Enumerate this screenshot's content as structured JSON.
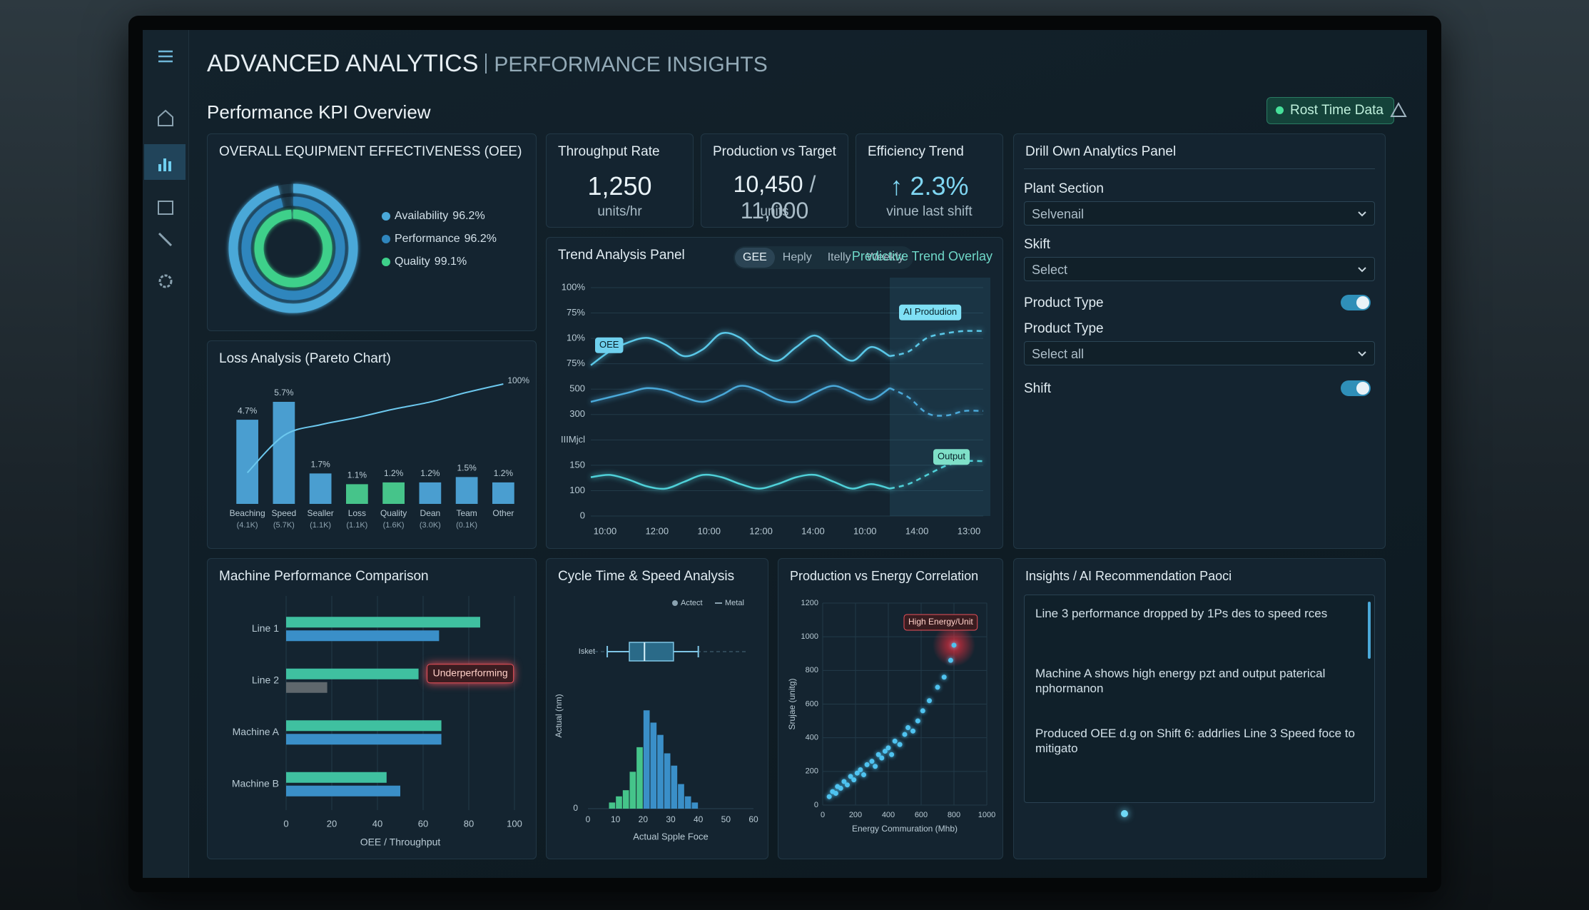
{
  "header": {
    "title": "ADVANCED ANALYTICS",
    "subtitle": "PERFORMANCE INSIGHTS",
    "section": "Performance KPI Overview",
    "status": "Rost Time Data"
  },
  "kpis": [
    {
      "title": "Throughput Rate",
      "value": "1,250",
      "unit": "units/hr"
    },
    {
      "title": "Production vs Target",
      "value": "10,450",
      "target": "/ 11,000",
      "unit": "units"
    },
    {
      "title": "Efficiency Trend",
      "value": "↑ 2.3%",
      "unit": "vinue last shift"
    }
  ],
  "drill_panel": {
    "title": "Drill Own Analytics Panel",
    "plant_section": {
      "label": "Plant Section",
      "value": "Selvenail"
    },
    "skift": {
      "label": "Skift",
      "value": "Select"
    },
    "product_type_toggle": {
      "label": "Product Type",
      "on": true
    },
    "product_type": {
      "label": "Product Type",
      "value": "Select all"
    },
    "shift_toggle": {
      "label": "Shift",
      "on": true
    }
  },
  "insights": {
    "title": "Insights / AI Recommendation Paoci",
    "items": [
      "Line 3 performance dropped by 1Ps des to speed rces",
      "Machine A shows high energy pzt and output paterical nphormanon",
      "Produced OEE d.g on Shift 6: addrlies Line 3 Speed foce to mitigato"
    ]
  },
  "chart_data": [
    {
      "type": "donut",
      "title": "OVERALL EQUIPMENT EFFECTIVENESS (OEE)",
      "categories": [
        "Availability",
        "Performance",
        "Quality"
      ],
      "values": [
        96.2,
        96.2,
        99.1
      ],
      "value_labels": [
        "96.2%",
        "96.2%",
        "99.1%"
      ],
      "colors": [
        "#4aa8d8",
        "#2f86bd",
        "#3ed08a"
      ]
    },
    {
      "type": "pareto",
      "title": "Loss Analysis (Pareto Chart)",
      "categories": [
        "Beaching",
        "Speed",
        "Sealler",
        "Loss",
        "Quality",
        "Dean",
        "Team",
        "Other"
      ],
      "category_notes": [
        "(4.1K)",
        "(5.7K)",
        "(1.1K)",
        "(1.1K)",
        "(1.6K)",
        "(3.0K)",
        "(0.1K)",
        null
      ],
      "values": [
        4.7,
        5.7,
        1.7,
        1.1,
        1.2,
        1.2,
        1.5,
        1.2
      ],
      "value_labels": [
        "4.7%",
        "5.7%",
        "1.7%",
        "1.1%",
        "1.2%",
        "1.2%",
        "1.5%",
        "1.2%"
      ],
      "colors": [
        "#4a9ed0",
        "#4a9ed0",
        "#4a9ed0",
        "#46c48a",
        "#46c48a",
        "#4a9ed0",
        "#4a9ed0",
        "#4a9ed0"
      ],
      "cumulative": {
        "values": [
          26,
          57,
          66,
          72,
          79,
          85,
          93,
          100
        ],
        "label": "100%",
        "color": "#6cc8ee"
      }
    },
    {
      "type": "line",
      "title": "Trend Analysis Panel",
      "tabs": [
        "GEE",
        "Heply",
        "Itelly",
        "Weekly"
      ],
      "active_tab": 0,
      "overlay_label": "Predictive Trend Overlay",
      "forecast_label": "AI Produdion",
      "y_labels": [
        "0",
        "100",
        "150",
        "IIIMjcl",
        "300",
        "500",
        "75%",
        "10%",
        "75%",
        "100%"
      ],
      "x_labels": [
        "10:00",
        "12:00",
        "10:00",
        "12:00",
        "14:00",
        "10:00",
        "14:00",
        "13:00"
      ],
      "ylim": [
        0,
        100
      ],
      "forecast_from": 16,
      "series": [
        {
          "name": "OEE",
          "color": "#5ac8e8",
          "values": [
            66,
            72,
            76,
            78,
            75,
            70,
            73,
            80,
            78,
            71,
            68,
            74,
            79,
            73,
            68,
            74,
            70,
            72,
            78,
            80,
            81,
            81
          ]
        },
        {
          "color": "#4aa8d8",
          "values": [
            50,
            52,
            54,
            56,
            55,
            52,
            50,
            53,
            57,
            55,
            51,
            50,
            54,
            57,
            54,
            51,
            56,
            52,
            45,
            44,
            46,
            46
          ]
        },
        {
          "name": "Output",
          "color": "#4fd0d8",
          "values": [
            17,
            18,
            16,
            13,
            12,
            15,
            18,
            17,
            14,
            12,
            14,
            17,
            18,
            15,
            12,
            14,
            12,
            14,
            18,
            22,
            24,
            24
          ]
        }
      ]
    },
    {
      "type": "hbar",
      "title": "Machine Performance Comparison",
      "categories": [
        "Line 1",
        "Line 2",
        "Machine A",
        "Machine B"
      ],
      "series": [
        {
          "color": "#3fc0a0",
          "values": [
            85,
            58,
            68,
            44
          ]
        },
        {
          "colors": [
            "#3a8fc8",
            "#5f676c",
            "#3a8fc8",
            "#3a8fc8"
          ],
          "values": [
            67,
            18,
            68,
            50
          ]
        }
      ],
      "xlim": [
        0,
        100
      ],
      "xticks": [
        0,
        20,
        40,
        60,
        80,
        100
      ],
      "xlabel": "OEE / Throughput",
      "grid": true,
      "annotation": {
        "text": "Underperforming",
        "category": 1
      }
    },
    {
      "type": "box_histogram",
      "title": "Cycle Time & Speed Analysis",
      "legend": [
        "Actect",
        "Metal"
      ],
      "xlim": [
        0,
        60
      ],
      "xticks": [
        0,
        10,
        20,
        30,
        40,
        50,
        60
      ],
      "xlabel": "Actual Spple Foce",
      "ylabel": "Actual (nm)",
      "ylim": [
        0,
        18
      ],
      "yticks": [
        0
      ],
      "box": {
        "label": "Isket",
        "min": 7,
        "q1": 15,
        "median": 20.5,
        "q3": 31,
        "max": 40
      },
      "bins": [
        7.5,
        10,
        12.5,
        15,
        17.5,
        20,
        22.5,
        25,
        27.5,
        30,
        32.5,
        35,
        37.5,
        40
      ],
      "counts": [
        1,
        2,
        3,
        6,
        10,
        16,
        14,
        12,
        9,
        7,
        4,
        2,
        1
      ],
      "colors": [
        "#45c48a",
        "#45c48a",
        "#45c48a",
        "#45c48a",
        "#45c48a",
        "#3a8fc8",
        "#3a8fc8",
        "#3a8fc8",
        "#3a8fc8",
        "#3a8fc8",
        "#3a8fc8",
        "#3a8fc8",
        "#3a8fc8"
      ]
    },
    {
      "type": "scatter",
      "title": "Production vs Energy Correlation",
      "xlabel": "Energy Commuration (Mhb)",
      "ylabel": "Srujae (unitg)",
      "annotation": "High Energy/Unit",
      "xlim": [
        0,
        1000
      ],
      "xticks": [
        0,
        200,
        400,
        600,
        800,
        1000
      ],
      "ylim": [
        0,
        1200
      ],
      "yticks": [
        0,
        200,
        400,
        600,
        800,
        1000,
        1200
      ],
      "grid": true,
      "color": "#4fc3f0",
      "x": [
        40,
        60,
        80,
        90,
        110,
        130,
        150,
        170,
        190,
        210,
        230,
        250,
        270,
        300,
        320,
        340,
        360,
        380,
        400,
        420,
        440,
        470,
        500,
        520,
        550,
        580,
        610,
        650,
        700,
        740,
        780,
        800
      ],
      "y": [
        50,
        80,
        70,
        110,
        100,
        140,
        120,
        170,
        150,
        190,
        210,
        180,
        240,
        260,
        230,
        300,
        280,
        320,
        340,
        300,
        380,
        360,
        420,
        460,
        440,
        500,
        560,
        620,
        700,
        760,
        860,
        950
      ]
    }
  ]
}
